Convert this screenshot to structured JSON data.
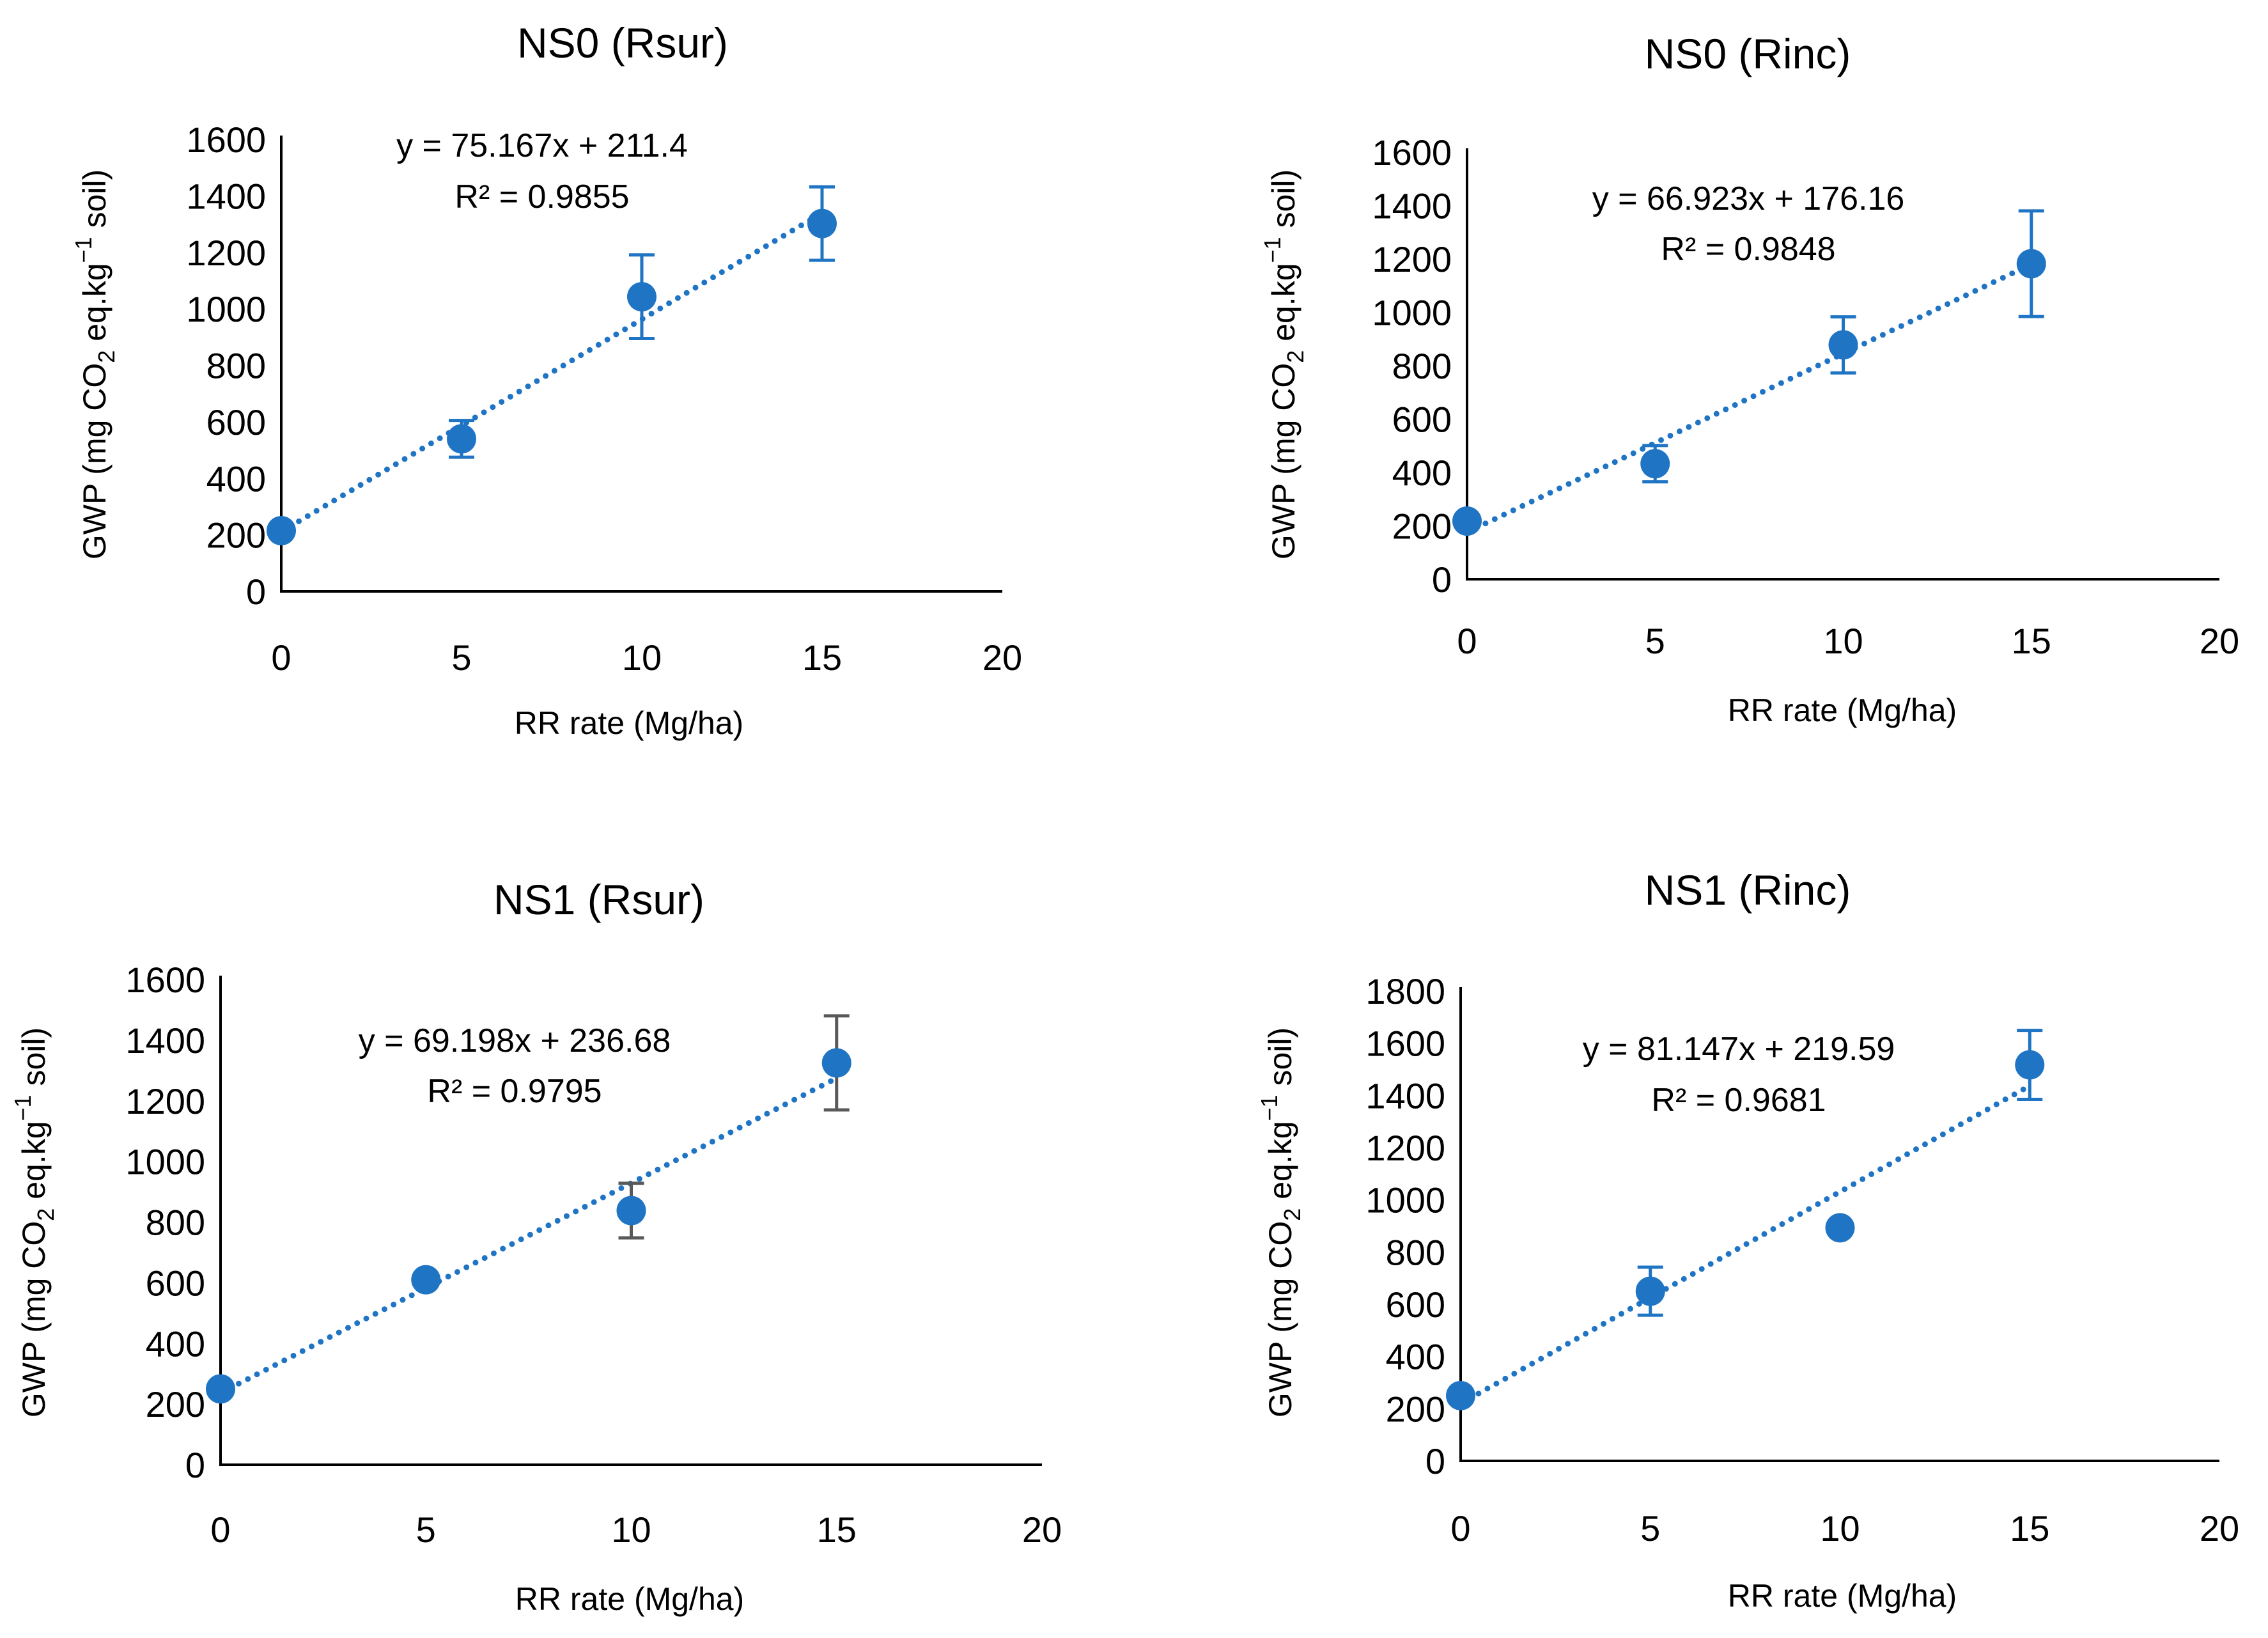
{
  "colors": {
    "marker": "#1f74c4",
    "line": "#1f74c4",
    "axis": "#000000",
    "errorbar_alt": "#595959"
  },
  "chart_data": [
    {
      "type": "scatter",
      "title": "NS0 (Rsur)",
      "xlabel": "RR rate (Mg/ha)",
      "ylabel": {
        "prefix": "GWP (mg CO",
        "sub": "2",
        "mid": " eq.kg",
        "sup": "−1",
        "suffix": " soil)"
      },
      "x": [
        0,
        5,
        10,
        15
      ],
      "y": [
        215,
        540,
        1043,
        1302
      ],
      "error": [
        0,
        65,
        148,
        130
      ],
      "xlim": [
        0,
        20
      ],
      "ylim": [
        0,
        1600
      ],
      "xticks": [
        0,
        5,
        10,
        15,
        20
      ],
      "yticks": [
        0,
        200,
        400,
        600,
        800,
        1000,
        1200,
        1400,
        1600
      ],
      "trendline": {
        "slope": 75.167,
        "intercept": 211.4,
        "x_range": [
          0,
          15
        ],
        "style": "dotted"
      },
      "equation": "y = 75.167x + 211.4",
      "r2": "R² = 0.9855"
    },
    {
      "type": "scatter",
      "title": "NS0 (Rinc)",
      "xlabel": "RR rate (Mg/ha)",
      "ylabel": {
        "prefix": "GWP (mg CO",
        "sub": "2",
        "mid": " eq.kg",
        "sup": "−1",
        "suffix": " soil)"
      },
      "x": [
        0,
        5,
        10,
        15
      ],
      "y": [
        218,
        433,
        878,
        1182
      ],
      "error": [
        0,
        68,
        105,
        198
      ],
      "xlim": [
        0,
        20
      ],
      "ylim": [
        0,
        1600
      ],
      "xticks": [
        0,
        5,
        10,
        15,
        20
      ],
      "yticks": [
        0,
        200,
        400,
        600,
        800,
        1000,
        1200,
        1400,
        1600
      ],
      "trendline": {
        "slope": 66.923,
        "intercept": 176.16,
        "x_range": [
          0,
          15
        ],
        "style": "dotted"
      },
      "equation": "y = 66.923x + 176.16",
      "r2": "R² = 0.9848"
    },
    {
      "type": "scatter",
      "title": "NS1 (Rsur)",
      "xlabel": "RR rate (Mg/ha)",
      "ylabel": {
        "prefix": "GWP (mg CO",
        "sub": "2",
        "mid": " eq.kg",
        "sup": "−1",
        "suffix": " soil)"
      },
      "x": [
        0,
        5,
        10,
        15
      ],
      "y": [
        250,
        610,
        838,
        1325
      ],
      "error": [
        0,
        0,
        90,
        155
      ],
      "xlim": [
        0,
        20
      ],
      "ylim": [
        0,
        1600
      ],
      "xticks": [
        0,
        5,
        10,
        15,
        20
      ],
      "yticks": [
        0,
        200,
        400,
        600,
        800,
        1000,
        1200,
        1400,
        1600
      ],
      "trendline": {
        "slope": 69.198,
        "intercept": 236.68,
        "x_range": [
          0,
          15
        ],
        "style": "dotted"
      },
      "equation": "y = 69.198x + 236.68",
      "r2": "R² = 0.9795",
      "errorbar_color": "gray"
    },
    {
      "type": "scatter",
      "title": "NS1 (Rinc)",
      "xlabel": "RR rate (Mg/ha)",
      "ylabel": {
        "prefix": "GWP (mg CO",
        "sub": "2",
        "mid": " eq.kg",
        "sup": "−1",
        "suffix": " soil)"
      },
      "x": [
        0,
        5,
        10,
        15
      ],
      "y": [
        250,
        650,
        893,
        1517
      ],
      "error": [
        0,
        92,
        0,
        132
      ],
      "xlim": [
        0,
        20
      ],
      "ylim": [
        0,
        1800
      ],
      "xticks": [
        0,
        5,
        10,
        15,
        20
      ],
      "yticks": [
        0,
        200,
        400,
        600,
        800,
        1000,
        1200,
        1400,
        1600,
        1800
      ],
      "trendline": {
        "slope": 81.147,
        "intercept": 219.59,
        "x_range": [
          0,
          15
        ],
        "style": "dotted"
      },
      "equation": "y = 81.147x + 219.59",
      "r2": "R² = 0.9681"
    }
  ]
}
